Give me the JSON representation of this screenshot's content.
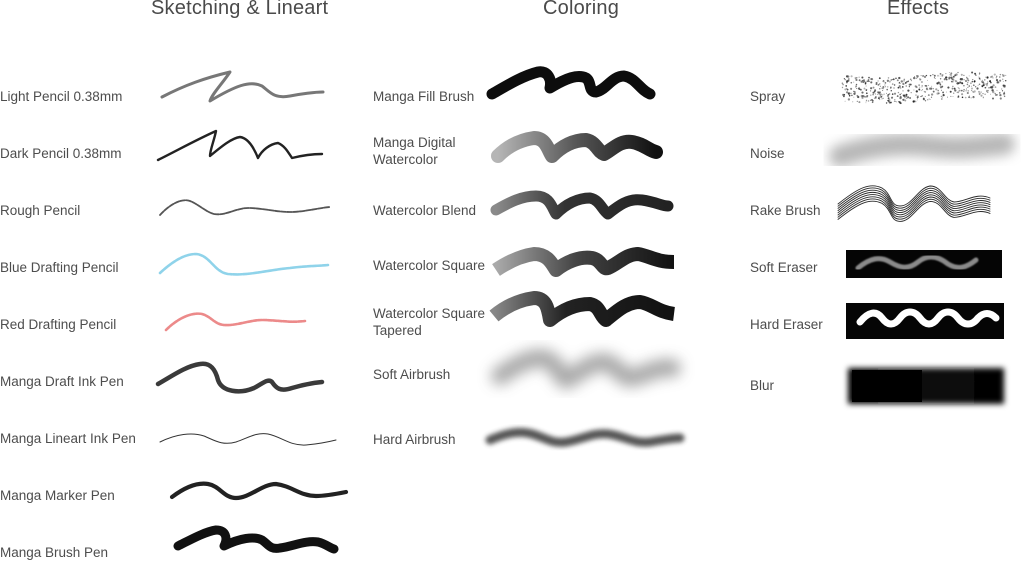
{
  "columns": [
    {
      "title": "Sketching & Lineart",
      "brushes": [
        {
          "label": "Light Pencil 0.38mm",
          "icon": "light-pencil-stroke"
        },
        {
          "label": "Dark Pencil 0.38mm",
          "icon": "dark-pencil-stroke"
        },
        {
          "label": "Rough Pencil",
          "icon": "rough-pencil-stroke"
        },
        {
          "label": "Blue Drafting Pencil",
          "icon": "blue-drafting-pencil-stroke"
        },
        {
          "label": "Red Drafting Pencil",
          "icon": "red-drafting-pencil-stroke"
        },
        {
          "label": "Manga Draft Ink Pen",
          "icon": "manga-draft-ink-pen-stroke"
        },
        {
          "label": "Manga Lineart Ink Pen",
          "icon": "manga-lineart-ink-pen-stroke"
        },
        {
          "label": "Manga Marker Pen",
          "icon": "manga-marker-pen-stroke"
        },
        {
          "label": "Manga Brush Pen",
          "icon": "manga-brush-pen-stroke"
        }
      ]
    },
    {
      "title": "Coloring",
      "brushes": [
        {
          "label": "Manga Fill Brush",
          "icon": "manga-fill-brush-stroke"
        },
        {
          "label": "Manga Digital\nWatercolor",
          "icon": "manga-digital-watercolor-stroke"
        },
        {
          "label": "Watercolor Blend",
          "icon": "watercolor-blend-stroke"
        },
        {
          "label": "Watercolor Square",
          "icon": "watercolor-square-stroke"
        },
        {
          "label": "Watercolor Square\nTapered",
          "icon": "watercolor-square-tapered-stroke"
        },
        {
          "label": "Soft Airbrush",
          "icon": "soft-airbrush-stroke"
        },
        {
          "label": "Hard Airbrush",
          "icon": "hard-airbrush-stroke"
        }
      ]
    },
    {
      "title": "Effects",
      "brushes": [
        {
          "label": "Spray",
          "icon": "spray-stroke"
        },
        {
          "label": "Noise",
          "icon": "noise-stroke"
        },
        {
          "label": "Rake Brush",
          "icon": "rake-brush-stroke"
        },
        {
          "label": "Soft Eraser",
          "icon": "soft-eraser-stroke"
        },
        {
          "label": "Hard Eraser",
          "icon": "hard-eraser-stroke"
        },
        {
          "label": "Blur",
          "icon": "blur-stroke"
        }
      ]
    }
  ],
  "colors": {
    "title": "#4a4a4a",
    "label": "#4d4d4d",
    "blue_pencil": "#8fd3ea",
    "red_pencil": "#ec8a8a",
    "ink": "#111111"
  }
}
